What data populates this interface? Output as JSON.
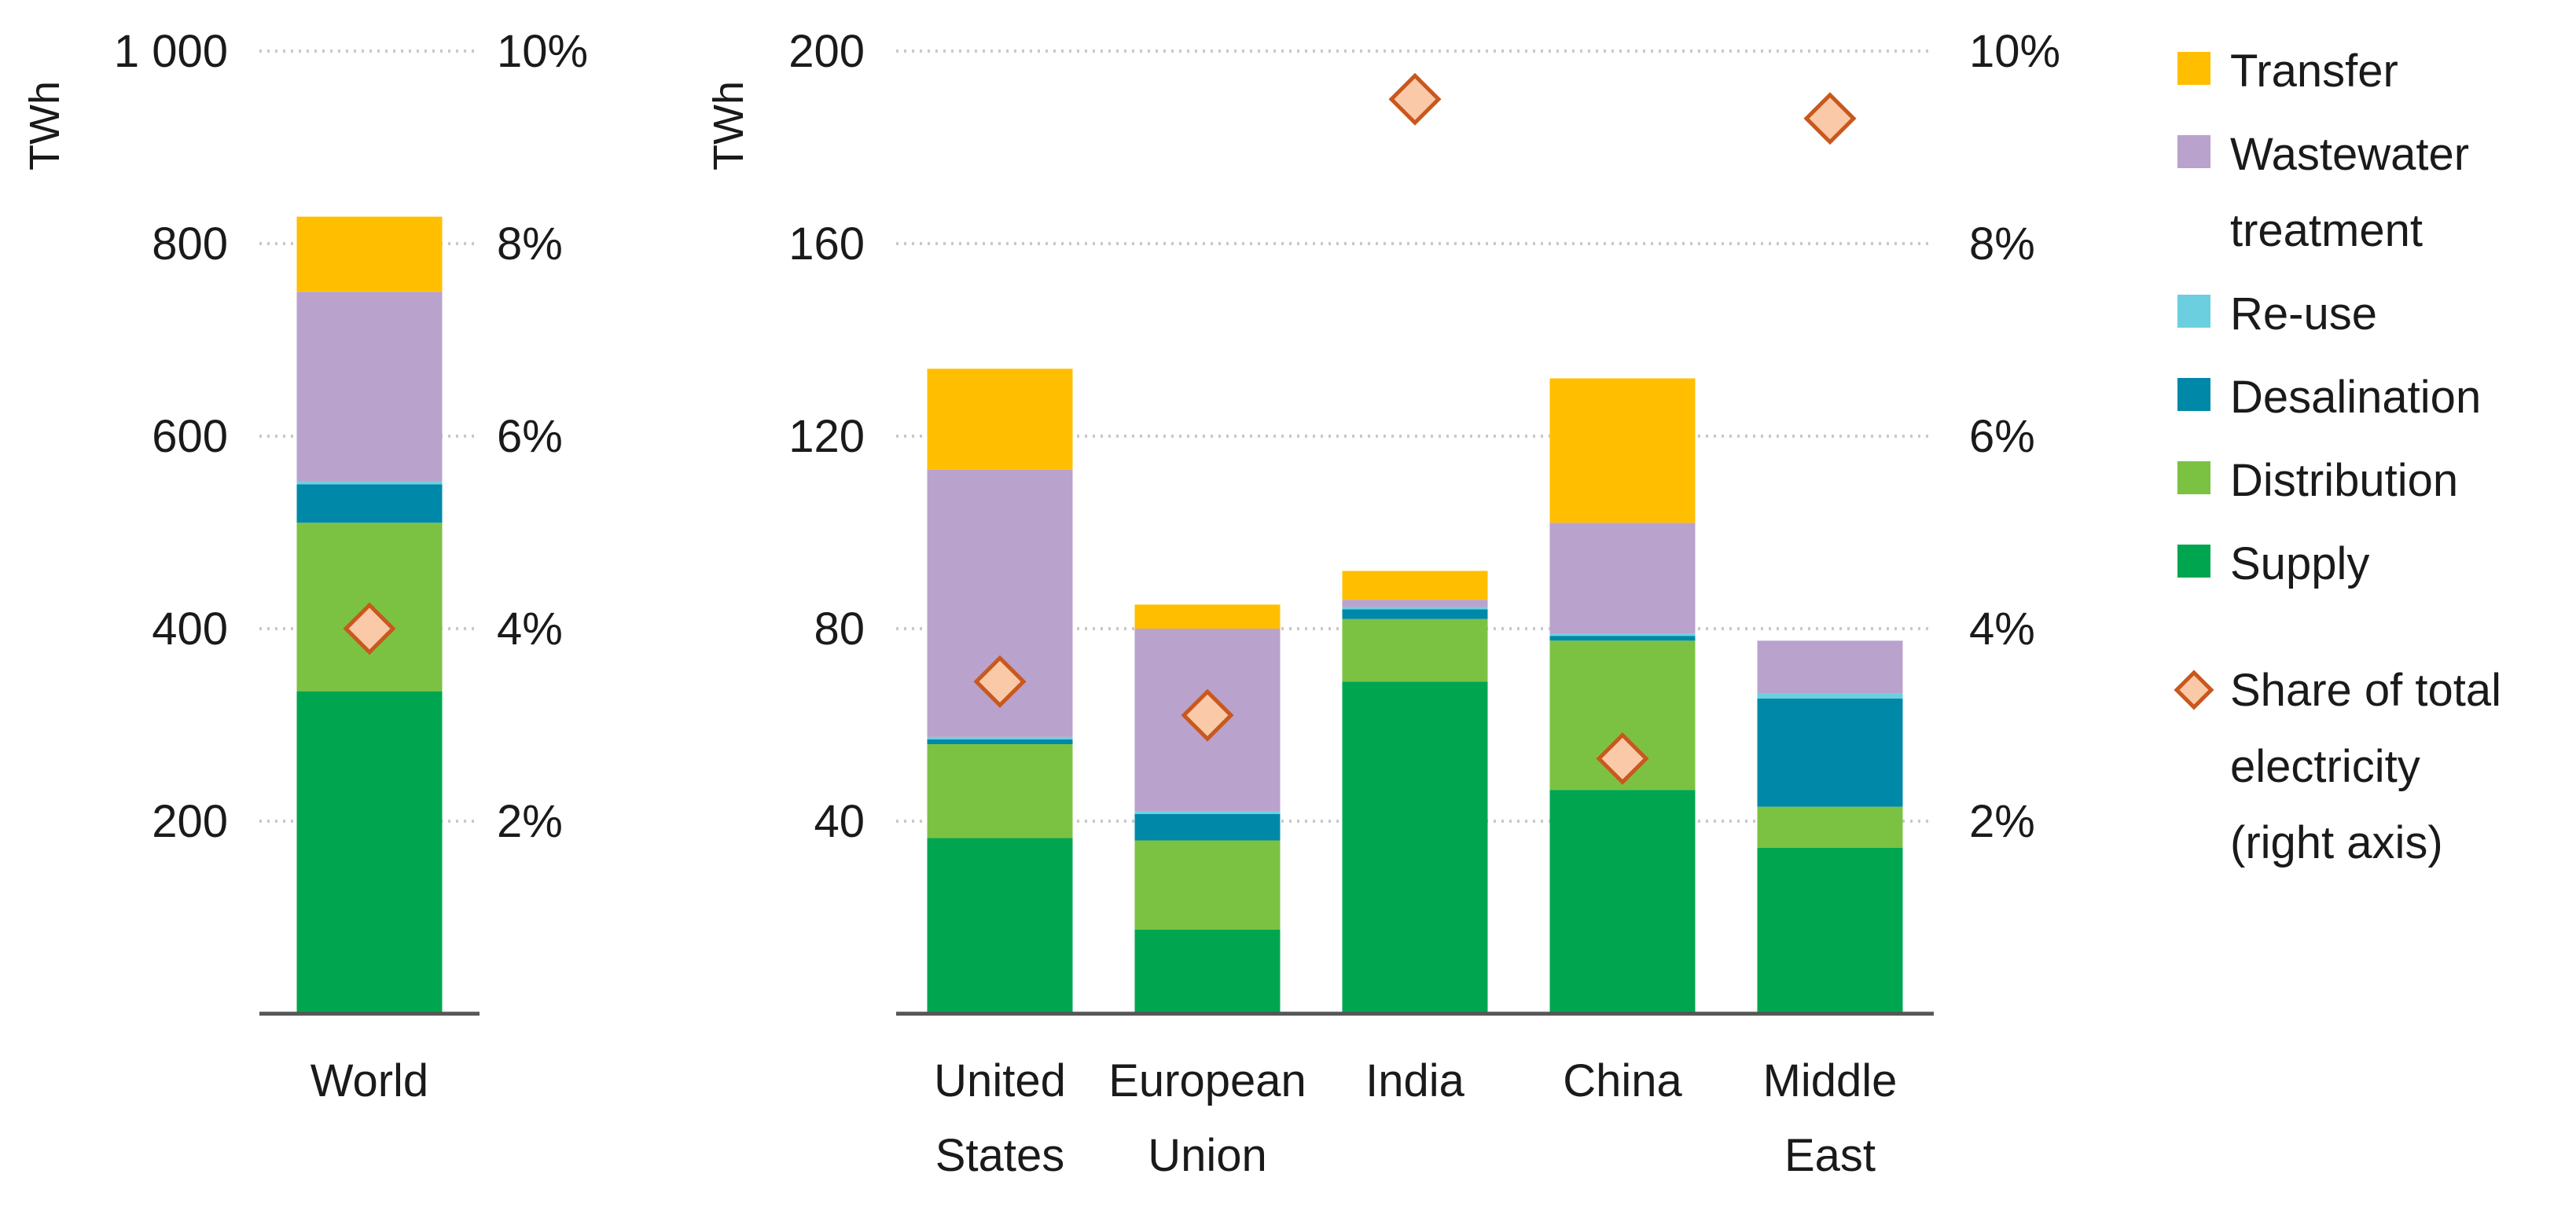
{
  "chart_data": [
    {
      "type": "bar",
      "stacked": true,
      "title": "",
      "ylabel": "TWh",
      "y2label": "",
      "ylim": [
        0,
        1000
      ],
      "y2lim": [
        0,
        10
      ],
      "yticks": [
        200,
        400,
        600,
        800,
        1000
      ],
      "ytick_labels": [
        "200",
        "400",
        "600",
        "800",
        "1 000"
      ],
      "y2ticks": [
        2,
        4,
        6,
        8,
        10
      ],
      "y2tick_labels": [
        "2%",
        "4%",
        "6%",
        "8%",
        "10%"
      ],
      "grid": "horizontal dotted",
      "categories": [
        [
          "World"
        ]
      ],
      "series": [
        {
          "name": "Supply",
          "color": "#00a64f",
          "values": [
            335
          ]
        },
        {
          "name": "Distribution",
          "color": "#7cc242",
          "values": [
            175
          ]
        },
        {
          "name": "Desalination",
          "color": "#0088a8",
          "values": [
            40
          ]
        },
        {
          "name": "Re-use",
          "color": "#6bcfe0",
          "values": [
            3
          ]
        },
        {
          "name": "Wastewater treatment",
          "color": "#b9a2cc",
          "values": [
            197
          ]
        },
        {
          "name": "Transfer",
          "color": "#ffbf00",
          "values": [
            78
          ]
        }
      ],
      "share": {
        "name": "Share of total electricity (right axis)",
        "axis": "right",
        "values": [
          4.0
        ]
      }
    },
    {
      "type": "bar",
      "stacked": true,
      "title": "",
      "ylabel": "TWh",
      "y2label": "",
      "ylim": [
        0,
        200
      ],
      "y2lim": [
        0,
        10
      ],
      "yticks": [
        40,
        80,
        120,
        160,
        200
      ],
      "ytick_labels": [
        "40",
        "80",
        "120",
        "160",
        "200"
      ],
      "y2ticks": [
        2,
        4,
        6,
        8,
        10
      ],
      "y2tick_labels": [
        "2%",
        "4%",
        "6%",
        "8%",
        "10%"
      ],
      "grid": "horizontal dotted",
      "categories": [
        [
          "United",
          "States"
        ],
        [
          "European",
          "Union"
        ],
        [
          "India"
        ],
        [
          "China"
        ],
        [
          "Middle",
          "East"
        ]
      ],
      "series": [
        {
          "name": "Supply",
          "color": "#00a64f",
          "values": [
            36.5,
            17.5,
            69,
            46.5,
            34.5
          ]
        },
        {
          "name": "Distribution",
          "color": "#7cc242",
          "values": [
            19.5,
            18.5,
            13,
            31,
            8.5
          ]
        },
        {
          "name": "Desalination",
          "color": "#0088a8",
          "values": [
            1,
            5.5,
            2,
            1,
            22.5
          ]
        },
        {
          "name": "Re-use",
          "color": "#6bcfe0",
          "values": [
            0.5,
            0.5,
            0.5,
            0.5,
            1
          ]
        },
        {
          "name": "Wastewater treatment",
          "color": "#b9a2cc",
          "values": [
            55.5,
            38,
            1.5,
            23,
            11
          ]
        },
        {
          "name": "Transfer",
          "color": "#ffbf00",
          "values": [
            21,
            5,
            6,
            30,
            0
          ]
        }
      ],
      "share": {
        "name": "Share of total electricity (right axis)",
        "axis": "right",
        "values": [
          3.45,
          3.1,
          9.5,
          2.65,
          9.3
        ]
      }
    }
  ],
  "legend": {
    "placement": "right",
    "items": [
      {
        "lines": [
          "Transfer"
        ],
        "color": "#ffbf00",
        "marker": "square"
      },
      {
        "lines": [
          "Wastewater",
          "treatment"
        ],
        "color": "#b9a2cc",
        "marker": "square"
      },
      {
        "lines": [
          "Re-use"
        ],
        "color": "#6bcfe0",
        "marker": "square"
      },
      {
        "lines": [
          "Desalination"
        ],
        "color": "#0088a8",
        "marker": "square"
      },
      {
        "lines": [
          "Distribution"
        ],
        "color": "#7cc242",
        "marker": "square"
      },
      {
        "lines": [
          "Supply"
        ],
        "color": "#00a64f",
        "marker": "square"
      },
      {
        "lines": [
          "Share of total",
          "electricity",
          "(right axis)"
        ],
        "color": "#f9c9a8",
        "stroke": "#c8581e",
        "marker": "diamond"
      }
    ]
  }
}
